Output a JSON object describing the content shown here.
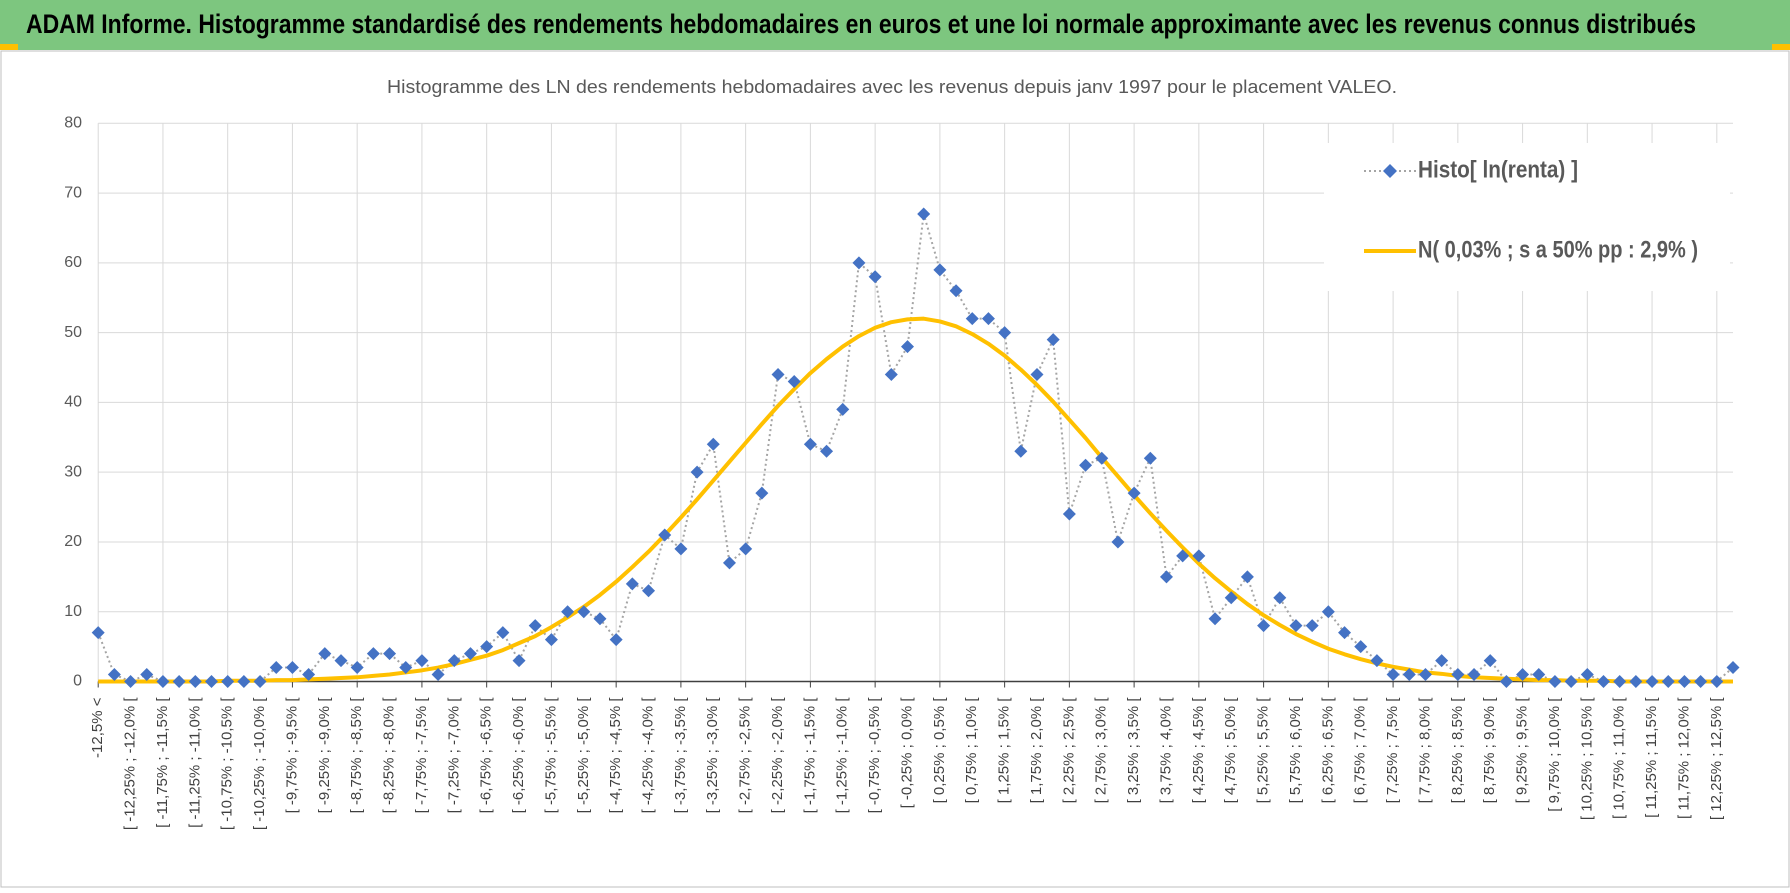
{
  "header": {
    "title": "ADAM Informe. Histogramme standardisé des rendements hebdomadaires en euros et une loi normale approximante avec les revenus connus distribués"
  },
  "chart_data": {
    "type": "line",
    "title": "Histogramme des LN des rendements hebdomadaires avec les revenus depuis janv 1997 pour le placement VALEO.",
    "categories": [
      "-12,5% <",
      null,
      "[ -12,25% ; -12,0% [",
      null,
      "[ -11,75% ; -11,5% [",
      null,
      "[ -11,25% ; -11,0% [",
      null,
      "[ -10,75% ; -10,5% [",
      null,
      "[ -10,25% ; -10,0% [",
      null,
      "[ -9,75% ; -9,5% [",
      null,
      "[ -9,25% ; -9,0% [",
      null,
      "[ -8,75% ; -8,5% [",
      null,
      "[ -8,25% ; -8,0% [",
      null,
      "[ -7,75% ; -7,5% [",
      null,
      "[ -7,25% ; -7,0% [",
      null,
      "[ -6,75% ; -6,5% [",
      null,
      "[ -6,25% ; -6,0% [",
      null,
      "[ -5,75% ; -5,5% [",
      null,
      "[ -5,25% ; -5,0% [",
      null,
      "[ -4,75% ; -4,5% [",
      null,
      "[ -4,25% ; -4,0% [",
      null,
      "[ -3,75% ; -3,5% [",
      null,
      "[ -3,25% ; -3,0% [",
      null,
      "[ -2,75% ; -2,5% [",
      null,
      "[ -2,25% ; -2,0% [",
      null,
      "[ -1,75% ; -1,5% [",
      null,
      "[ -1,25% ; -1,0% [",
      null,
      "[ -0,75% ; -0,5% [",
      null,
      "[ -0,25% ; 0,0% [",
      null,
      "[ 0,25% ; 0,5% [",
      null,
      "[ 0,75% ; 1,0% [",
      null,
      "[ 1,25% ; 1,5% [",
      null,
      "[ 1,75% ; 2,0% [",
      null,
      "[ 2,25% ; 2,5% [",
      null,
      "[ 2,75% ; 3,0% [",
      null,
      "[ 3,25% ; 3,5% [",
      null,
      "[ 3,75% ; 4,0% [",
      null,
      "[ 4,25% ; 4,5% [",
      null,
      "[ 4,75% ; 5,0% [",
      null,
      "[ 5,25% ; 5,5% [",
      null,
      "[ 5,75% ; 6,0% [",
      null,
      "[ 6,25% ; 6,5% [",
      null,
      "[ 6,75% ; 7,0% [",
      null,
      "[ 7,25% ; 7,5% [",
      null,
      "[ 7,75% ; 8,0% [",
      null,
      "[ 8,25% ; 8,5% [",
      null,
      "[ 8,75% ; 9,0% [",
      null,
      "[ 9,25% ; 9,5% [",
      null,
      "[ 9,75% ; 10,0% [",
      null,
      "[ 10,25% ; 10,5% [",
      null,
      "[ 10,75% ; 11,0% [",
      null,
      "[ 11,25% ; 11,5% [",
      null,
      "[ 11,75% ; 12,0% [",
      null,
      "[ 12,25% ; 12,5% [",
      null
    ],
    "series": [
      {
        "name": "Histo[ ln(renta) ]",
        "color": "#4472c4",
        "line_color": "#a5a5a5",
        "values": [
          7,
          1,
          0,
          1,
          0,
          0,
          0,
          0,
          0,
          0,
          0,
          2,
          2,
          1,
          4,
          3,
          2,
          4,
          4,
          2,
          3,
          1,
          3,
          4,
          5,
          7,
          3,
          8,
          6,
          10,
          10,
          9,
          6,
          14,
          13,
          21,
          19,
          30,
          34,
          17,
          19,
          27,
          44,
          43,
          34,
          33,
          39,
          60,
          58,
          44,
          48,
          67,
          59,
          56,
          52,
          52,
          50,
          33,
          44,
          49,
          24,
          31,
          32,
          20,
          27,
          32,
          15,
          18,
          18,
          9,
          12,
          15,
          8,
          12,
          8,
          8,
          10,
          7,
          5,
          3,
          1,
          1,
          1,
          3,
          1,
          1,
          3,
          0,
          1,
          1,
          0,
          0,
          1,
          0,
          0,
          0,
          0,
          0,
          0,
          0,
          0,
          2
        ]
      },
      {
        "name": "N( 0,03% ; s a 50% pp : 2,9% )",
        "color": "#ffc000",
        "values": [
          0,
          0,
          0,
          0,
          0,
          0,
          0,
          0,
          0.1,
          0.1,
          0.1,
          0.2,
          0.2,
          0.3,
          0.4,
          0.5,
          0.6,
          0.8,
          1,
          1.3,
          1.6,
          2,
          2.5,
          3.1,
          3.7,
          4.5,
          5.5,
          6.5,
          7.8,
          9.2,
          10.7,
          12.4,
          14.3,
          16.4,
          18.6,
          21,
          23.5,
          26.1,
          28.8,
          31.5,
          34.2,
          36.9,
          39.5,
          41.9,
          44.2,
          46.2,
          48,
          49.5,
          50.7,
          51.5,
          51.9,
          52,
          51.6,
          50.9,
          49.8,
          48.4,
          46.7,
          44.7,
          42.5,
          40.1,
          37.5,
          34.9,
          32.1,
          29.4,
          26.7,
          24.1,
          21.6,
          19.2,
          16.9,
          14.8,
          12.9,
          11.1,
          9.5,
          8.1,
          6.8,
          5.7,
          4.7,
          3.9,
          3.2,
          2.6,
          2.1,
          1.7,
          1.3,
          1.1,
          0.8,
          0.6,
          0.5,
          0.4,
          0.3,
          0.2,
          0.2,
          0.1,
          0.1,
          0.1,
          0,
          0,
          0,
          0,
          0,
          0,
          0,
          0
        ]
      }
    ],
    "ylim": [
      0,
      80
    ],
    "yticks": [
      0,
      10,
      20,
      30,
      40,
      50,
      60,
      70,
      80
    ],
    "grid": true,
    "legend": "upper right"
  }
}
